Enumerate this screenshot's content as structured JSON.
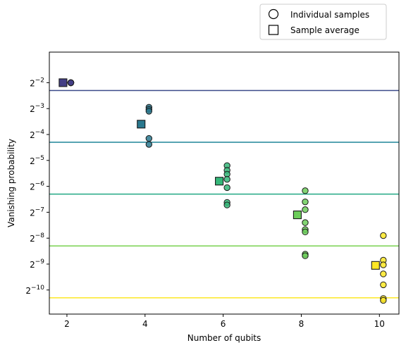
{
  "chart_data": {
    "type": "scatter",
    "xlabel": "Number of qubits",
    "ylabel": "Vanishing probability",
    "xlim": [
      1.55,
      10.5
    ],
    "ylim_log2": [
      -10.93,
      -0.82
    ],
    "y_scale": "log2",
    "x_ticks": [
      2,
      4,
      6,
      8,
      10
    ],
    "x_tick_labels": [
      "2",
      "4",
      "6",
      "8",
      "10"
    ],
    "y_ticks_log2": [
      -2,
      -3,
      -4,
      -5,
      -6,
      -7,
      -8,
      -9,
      -10
    ],
    "y_tick_bases": [
      "2",
      "2",
      "2",
      "2",
      "2",
      "2",
      "2",
      "2",
      "2"
    ],
    "y_tick_exponents": [
      "−2",
      "−3",
      "−4",
      "−5",
      "−6",
      "−7",
      "−8",
      "−9",
      "−10"
    ],
    "grid": false,
    "legend": {
      "placement": "above-right",
      "entries": [
        {
          "label": "Individual samples",
          "marker": "circle"
        },
        {
          "label": "Sample average",
          "marker": "square"
        }
      ]
    },
    "reference_lines": [
      {
        "qubits": 2,
        "log2_value": -2.3,
        "color": "#3b4a8a"
      },
      {
        "qubits": 4,
        "log2_value": -4.3,
        "color": "#1f8699"
      },
      {
        "qubits": 6,
        "log2_value": -6.3,
        "color": "#22a884"
      },
      {
        "qubits": 8,
        "log2_value": -8.3,
        "color": "#7ad151"
      },
      {
        "qubits": 10,
        "log2_value": -10.3,
        "color": "#fde725"
      }
    ],
    "groups": [
      {
        "qubits": 2,
        "color": "#433e85",
        "samples_x": 2.1,
        "samples_log2": [
          -2.0,
          -2.0,
          -2.0,
          -2.0,
          -2.0,
          -2.0,
          -2.0,
          -2.0
        ],
        "average_x": 1.9,
        "average_log2": -2.0
      },
      {
        "qubits": 4,
        "color": "#2a788e",
        "samples_x": 4.1,
        "samples_log2": [
          -2.95,
          -3.03,
          -3.1,
          -4.15,
          -4.38
        ],
        "average_x": 3.9,
        "average_log2": -3.6
      },
      {
        "qubits": 6,
        "color": "#35b779",
        "samples_x": 6.1,
        "samples_log2": [
          -5.2,
          -5.38,
          -5.53,
          -5.73,
          -6.05,
          -6.62,
          -6.72
        ],
        "average_x": 5.9,
        "average_log2": -5.8
      },
      {
        "qubits": 8,
        "color": "#6ccd5a",
        "samples_x": 8.1,
        "samples_log2": [
          -6.17,
          -6.6,
          -6.9,
          -7.4,
          -7.67,
          -7.76,
          -8.62,
          -8.68
        ],
        "average_x": 7.9,
        "average_log2": -7.1
      },
      {
        "qubits": 10,
        "color": "#fde725",
        "samples_x": 10.1,
        "samples_log2": [
          -7.9,
          -8.85,
          -9.03,
          -9.38,
          -9.8,
          -10.33,
          -10.4
        ],
        "average_x": 9.9,
        "average_log2": -9.05
      }
    ]
  }
}
